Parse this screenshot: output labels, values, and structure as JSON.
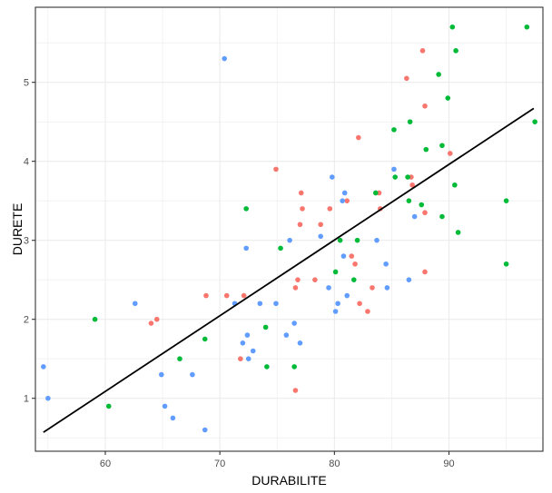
{
  "chart_data": {
    "type": "scatter",
    "xlabel": "DURABILITE",
    "ylabel": "DURETE",
    "xlim": [
      53.9,
      98.2
    ],
    "ylim": [
      0.33,
      5.95
    ],
    "x_ticks": [
      60,
      70,
      80,
      90
    ],
    "y_ticks": [
      1,
      2,
      3,
      4,
      5
    ],
    "grid": true,
    "legend": "none",
    "colors": {
      "red": "#f8766d",
      "green": "#00ba38",
      "blue": "#619cff",
      "line": "#000000"
    },
    "series": [
      {
        "color": "red",
        "points": [
          [
            64.0,
            1.95
          ],
          [
            64.5,
            2.0
          ],
          [
            68.8,
            2.3
          ],
          [
            70.6,
            2.3
          ],
          [
            71.8,
            1.5
          ],
          [
            72.1,
            2.3
          ],
          [
            74.9,
            3.9
          ],
          [
            76.6,
            1.1
          ],
          [
            76.6,
            2.4
          ],
          [
            76.8,
            2.5
          ],
          [
            77.0,
            3.2
          ],
          [
            77.1,
            3.6
          ],
          [
            77.2,
            3.4
          ],
          [
            78.3,
            2.5
          ],
          [
            78.8,
            3.2
          ],
          [
            79.6,
            3.4
          ],
          [
            81.1,
            3.5
          ],
          [
            81.5,
            2.8
          ],
          [
            81.8,
            2.7
          ],
          [
            82.1,
            4.3
          ],
          [
            82.2,
            2.2
          ],
          [
            82.9,
            2.1
          ],
          [
            83.3,
            2.4
          ],
          [
            83.9,
            3.6
          ],
          [
            84.0,
            3.4
          ],
          [
            86.3,
            5.05
          ],
          [
            86.7,
            3.8
          ],
          [
            86.8,
            3.7
          ],
          [
            87.7,
            5.4
          ],
          [
            87.9,
            4.7
          ],
          [
            87.9,
            2.6
          ],
          [
            87.9,
            3.35
          ],
          [
            90.1,
            4.1
          ]
        ]
      },
      {
        "color": "green",
        "points": [
          [
            59.1,
            2.0
          ],
          [
            60.3,
            0.9
          ],
          [
            66.5,
            1.5
          ],
          [
            68.7,
            1.75
          ],
          [
            72.3,
            3.4
          ],
          [
            74.0,
            1.9
          ],
          [
            74.1,
            1.4
          ],
          [
            75.3,
            2.9
          ],
          [
            76.5,
            1.4
          ],
          [
            80.1,
            2.6
          ],
          [
            80.5,
            3.0
          ],
          [
            81.7,
            2.5
          ],
          [
            82.0,
            3.0
          ],
          [
            83.6,
            3.6
          ],
          [
            85.2,
            4.4
          ],
          [
            85.3,
            3.8
          ],
          [
            86.4,
            3.8
          ],
          [
            86.5,
            3.5
          ],
          [
            86.6,
            4.5
          ],
          [
            87.6,
            3.45
          ],
          [
            88.0,
            4.15
          ],
          [
            89.1,
            5.1
          ],
          [
            89.4,
            4.2
          ],
          [
            89.4,
            3.3
          ],
          [
            89.9,
            4.8
          ],
          [
            90.3,
            5.7
          ],
          [
            90.5,
            3.7
          ],
          [
            90.6,
            5.4
          ],
          [
            90.8,
            3.1
          ],
          [
            95.0,
            3.5
          ],
          [
            95.0,
            2.7
          ],
          [
            96.8,
            5.7
          ],
          [
            97.5,
            4.5
          ]
        ]
      },
      {
        "color": "blue",
        "points": [
          [
            54.6,
            1.4
          ],
          [
            55.0,
            1.0
          ],
          [
            62.6,
            2.2
          ],
          [
            64.9,
            1.3
          ],
          [
            65.2,
            0.9
          ],
          [
            65.9,
            0.75
          ],
          [
            67.6,
            1.3
          ],
          [
            68.7,
            0.6
          ],
          [
            70.4,
            5.3
          ],
          [
            71.3,
            2.2
          ],
          [
            72.0,
            1.7
          ],
          [
            72.3,
            2.9
          ],
          [
            72.4,
            1.8
          ],
          [
            72.5,
            1.5
          ],
          [
            72.9,
            1.6
          ],
          [
            73.5,
            2.2
          ],
          [
            74.9,
            2.2
          ],
          [
            75.8,
            1.8
          ],
          [
            76.1,
            3.0
          ],
          [
            76.5,
            1.95
          ],
          [
            77.0,
            1.7
          ],
          [
            78.8,
            3.05
          ],
          [
            79.5,
            2.4
          ],
          [
            79.8,
            3.8
          ],
          [
            80.1,
            2.1
          ],
          [
            80.3,
            2.2
          ],
          [
            80.7,
            3.5
          ],
          [
            80.8,
            2.8
          ],
          [
            80.9,
            3.6
          ],
          [
            81.1,
            2.3
          ],
          [
            83.7,
            3.0
          ],
          [
            84.5,
            2.7
          ],
          [
            84.6,
            2.4
          ],
          [
            85.2,
            3.9
          ],
          [
            86.5,
            2.5
          ],
          [
            87.0,
            3.3
          ]
        ]
      }
    ],
    "regression_line": {
      "from": [
        54.6,
        0.57
      ],
      "to": [
        97.4,
        4.67
      ]
    }
  }
}
